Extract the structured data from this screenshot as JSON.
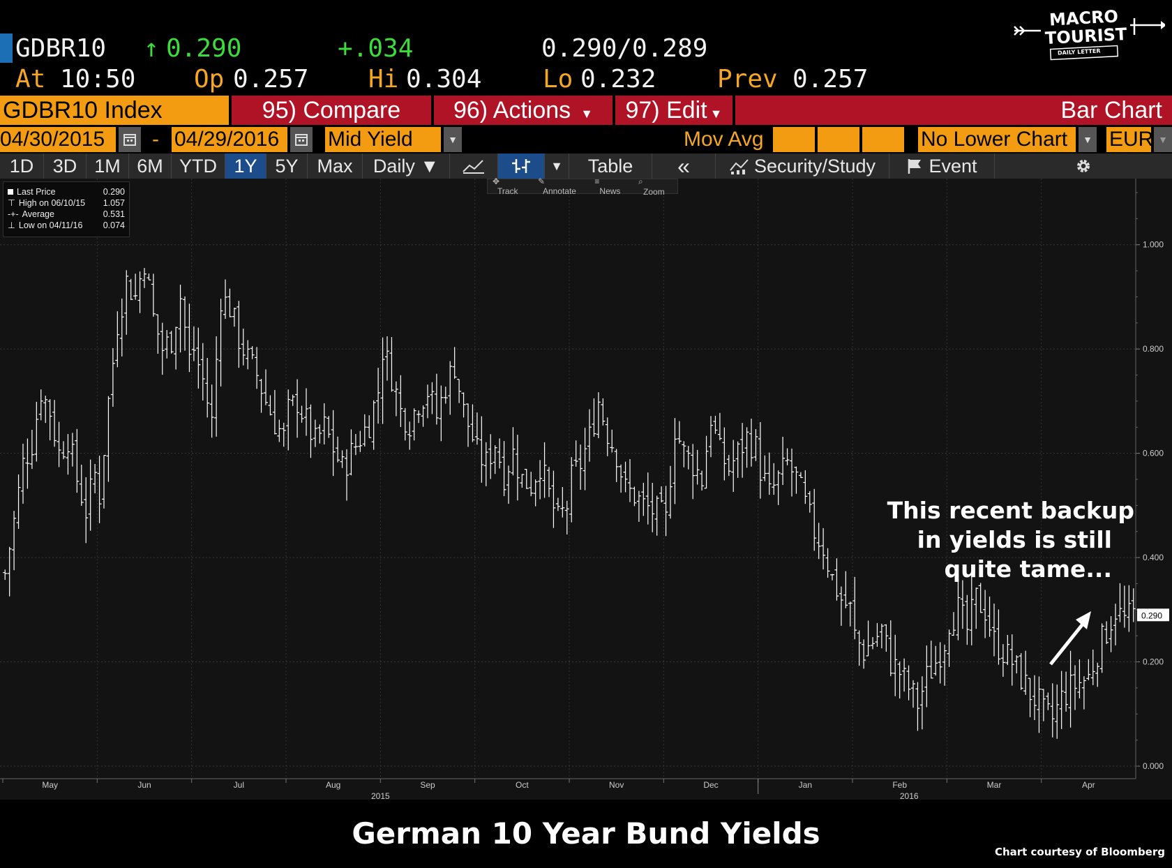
{
  "quote": {
    "ticker": "GDBR10",
    "last_arrow": "↑",
    "last": "0.290",
    "change": "+.034",
    "bid_ask": "0.290/0.289",
    "at_label": "At",
    "at_time": "10:50",
    "op_label": "Op",
    "op_value": "0.257",
    "hi_label": "Hi",
    "hi_value": "0.304",
    "lo_label": "Lo",
    "lo_value": "0.232",
    "prev_label": "Prev",
    "prev_value": "0.257"
  },
  "logo": {
    "line1": "MACRO",
    "line2": "TOURIST",
    "line3": "DAILY LETTER"
  },
  "menubar": {
    "security": "GDBR10 Index",
    "compare": "95) Compare",
    "actions": "96) Actions",
    "edit": "97) Edit",
    "chart_type": "Bar Chart"
  },
  "settings": {
    "start_date": "04/30/2015",
    "dash": "-",
    "end_date": "04/29/2016",
    "field": "Mid Yield",
    "mov_avg": "Mov Avg",
    "lower_chart": "No Lower Chart",
    "currency": "EUR"
  },
  "tabs": [
    "1D",
    "3D",
    "1M",
    "6M",
    "YTD",
    "1Y",
    "5Y",
    "Max",
    "Daily ▼"
  ],
  "active_tab": "1Y",
  "tools": {
    "table": "Table",
    "back": "«",
    "security_study": "Security/Study",
    "event": "Event"
  },
  "subtools": {
    "track": "Track",
    "annotate": "Annotate",
    "news": "News",
    "zoom": "Zoom"
  },
  "legend": [
    {
      "label": "Last Price",
      "value": "0.290"
    },
    {
      "label": "High on 06/10/15",
      "value": "1.057"
    },
    {
      "label": "Average",
      "value": "0.531"
    },
    {
      "label": "Low on 04/11/16",
      "value": "0.074"
    }
  ],
  "annotation": [
    "This recent backup",
    "in yields is still",
    "quite tame..."
  ],
  "title": "German 10 Year Bund Yields",
  "credit": "Chart courtesy of Bloomberg",
  "colors": {
    "amber": "#f5a623",
    "green": "#3ddc3d",
    "orange_bar": "#f39c12",
    "red_bar": "#b01325",
    "active_tab": "#1c4d8a",
    "bars": "#ffffff"
  },
  "chart_data": {
    "type": "bar",
    "subtype": "ohlc",
    "y_tick_labels": [
      "0.000",
      "0.200",
      "0.400",
      "0.600",
      "0.800",
      "1.000"
    ],
    "ylim": [
      0,
      1.1
    ],
    "last_price_label": "0.290",
    "x_month_labels": [
      "May",
      "Jun",
      "Jul",
      "Aug",
      "Sep",
      "Oct",
      "Nov",
      "Dec",
      "Jan",
      "Feb",
      "Mar",
      "Apr"
    ],
    "x_year_labels": [
      "2015",
      "2016"
    ],
    "grid": true,
    "monthly_path": [
      {
        "month": "May",
        "values": [
          0.37,
          0.47,
          0.58,
          0.62,
          0.72,
          0.68,
          0.6,
          0.63,
          0.55,
          0.49,
          0.56
        ]
      },
      {
        "month": "Jun",
        "values": [
          0.52,
          0.7,
          0.85,
          0.93,
          0.9,
          0.97,
          0.86,
          0.8,
          0.82,
          0.9,
          0.78
        ]
      },
      {
        "month": "Jul",
        "values": [
          0.8,
          0.74,
          0.66,
          0.9,
          0.88,
          0.82,
          0.78,
          0.75,
          0.7,
          0.66,
          0.63
        ]
      },
      {
        "month": "Aug",
        "values": [
          0.68,
          0.7,
          0.66,
          0.62,
          0.65,
          0.61,
          0.57,
          0.6,
          0.63,
          0.66,
          0.72
        ]
      },
      {
        "month": "Sep",
        "values": [
          0.8,
          0.75,
          0.68,
          0.66,
          0.7,
          0.72,
          0.67,
          0.73,
          0.77,
          0.68,
          0.63
        ]
      },
      {
        "month": "Oct",
        "values": [
          0.6,
          0.58,
          0.62,
          0.56,
          0.6,
          0.55,
          0.54,
          0.58,
          0.52,
          0.47,
          0.5
        ]
      },
      {
        "month": "Nov",
        "values": [
          0.55,
          0.58,
          0.63,
          0.7,
          0.64,
          0.6,
          0.53,
          0.52,
          0.5,
          0.49,
          0.48
        ]
      },
      {
        "month": "Dec",
        "values": [
          0.47,
          0.65,
          0.6,
          0.58,
          0.55,
          0.67,
          0.6,
          0.57,
          0.6,
          0.63,
          0.61
        ]
      },
      {
        "month": "Jan",
        "values": [
          0.57,
          0.52,
          0.55,
          0.58,
          0.55,
          0.5,
          0.45,
          0.42,
          0.36,
          0.32,
          0.3
        ]
      },
      {
        "month": "Feb",
        "values": [
          0.25,
          0.22,
          0.24,
          0.26,
          0.2,
          0.18,
          0.15,
          0.12,
          0.17,
          0.2,
          0.24
        ]
      },
      {
        "month": "Mar",
        "values": [
          0.28,
          0.3,
          0.26,
          0.32,
          0.3,
          0.24,
          0.22,
          0.2,
          0.17,
          0.14,
          0.12
        ]
      },
      {
        "month": "Apr",
        "values": [
          0.1,
          0.09,
          0.13,
          0.15,
          0.16,
          0.17,
          0.22,
          0.26,
          0.3,
          0.28,
          0.29
        ]
      }
    ]
  }
}
